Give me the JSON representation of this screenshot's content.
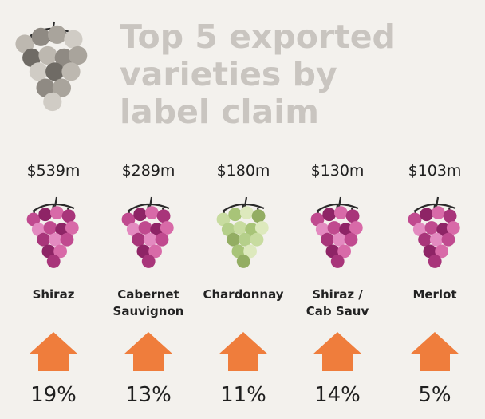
{
  "title_lines": [
    "Top 5 exported",
    "varieties by",
    "label claim"
  ],
  "items": [
    {
      "value": "$539m",
      "name_lines": [
        "Shiraz"
      ],
      "growth": "19%"
    },
    {
      "value": "$289m",
      "name_lines": [
        "Cabernet",
        "Sauvignon"
      ],
      "growth": "13%"
    },
    {
      "value": "$180m",
      "name_lines": [
        "Chardonnay"
      ],
      "growth": "11%"
    },
    {
      "value": "$130m",
      "name_lines": [
        "Shiraz /",
        "Cab Sauv"
      ],
      "growth": "14%"
    },
    {
      "value": "$103m",
      "name_lines": [
        "Merlot"
      ],
      "growth": "5%"
    }
  ]
}
